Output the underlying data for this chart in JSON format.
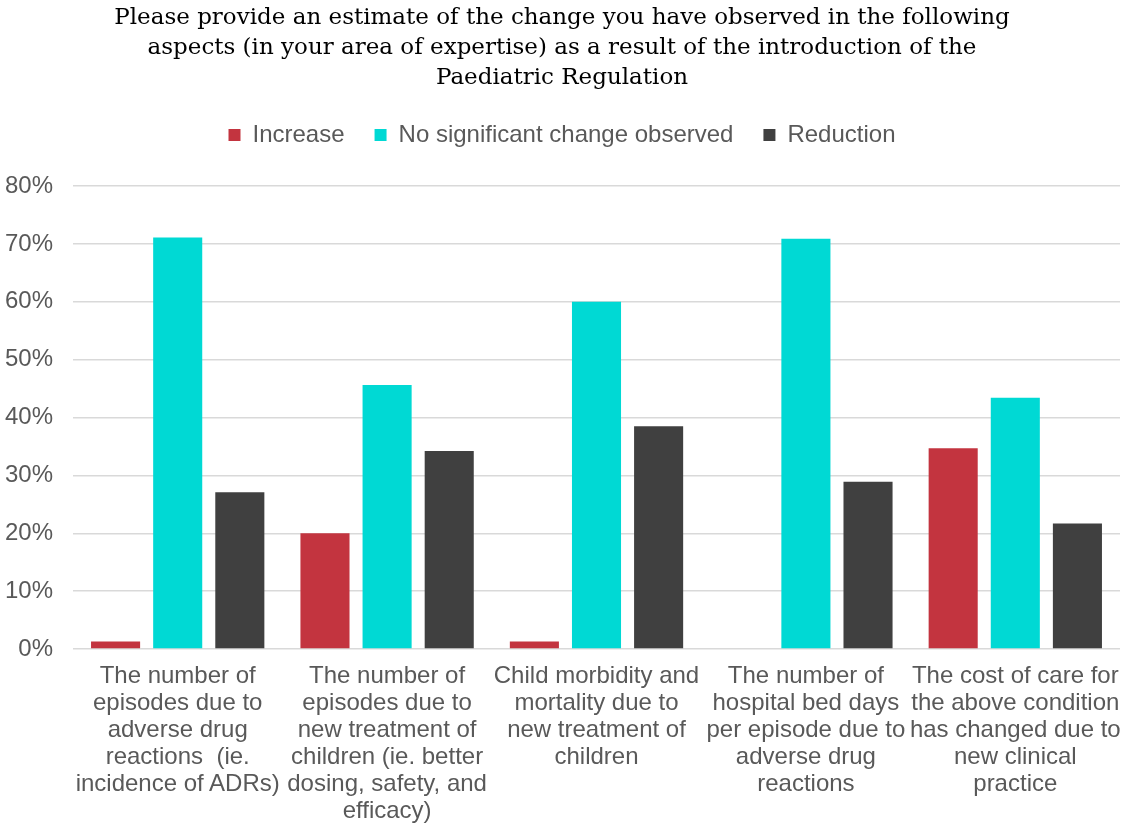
{
  "chart_data": {
    "type": "bar",
    "title": "Please provide an estimate of the change you have observed in the following aspects (in your area of expertise) as a result of the introduction of the Paediatric Regulation",
    "categories": [
      "The number of episodes due to adverse drug reactions  (ie. incidence of ADRs)",
      "The number of episodes due to new treatment of children (ie. better dosing, safety, and efficacy)",
      "Child morbidity and mortality due to new treatment of children",
      "The number of hospital bed days per episode due to adverse drug reactions",
      "The cost of care for the above condition has changed due to new clinical practice"
    ],
    "series": [
      {
        "name": "Increase",
        "color": "#c3343f",
        "values": [
          1.3,
          20,
          1.3,
          0,
          34.7
        ]
      },
      {
        "name": "No significant change observed",
        "color": "#00d9d4",
        "values": [
          71.1,
          45.6,
          60,
          70.9,
          43.4
        ]
      },
      {
        "name": "Reduction",
        "color": "#404040",
        "values": [
          27.1,
          34.2,
          38.5,
          28.9,
          21.7
        ]
      }
    ],
    "ylim": [
      0,
      80
    ],
    "yticks": [
      {
        "value": 0,
        "label": "0%"
      },
      {
        "value": 10,
        "label": "10%"
      },
      {
        "value": 20,
        "label": "20%"
      },
      {
        "value": 30,
        "label": "30%"
      },
      {
        "value": 40,
        "label": "40%"
      },
      {
        "value": 50,
        "label": "50%"
      },
      {
        "value": 60,
        "label": "60%"
      },
      {
        "value": 70,
        "label": "70%"
      },
      {
        "value": 80,
        "label": "80%"
      }
    ],
    "grid": "y",
    "legend": "top"
  }
}
